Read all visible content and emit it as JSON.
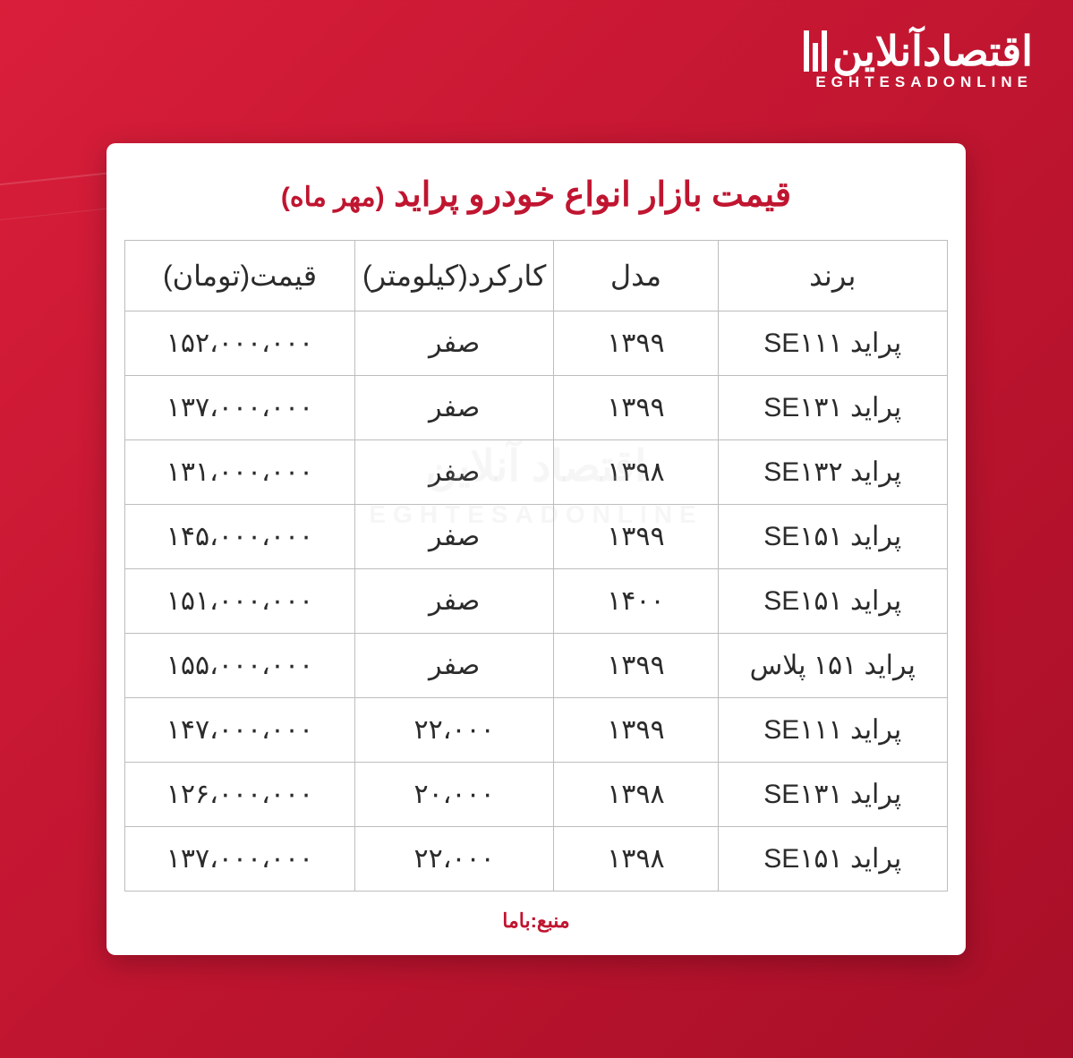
{
  "logo": {
    "main": "اقتصادآنلاین",
    "sub": "EGHTESADONLINE"
  },
  "title": {
    "main": "قیمت بازار انواع خودرو پراید",
    "month": "(مهر ماه)"
  },
  "table": {
    "headers": {
      "brand": "برند",
      "model": "مدل",
      "mileage": "کارکرد(کیلومتر)",
      "price": "قیمت(تومان)"
    },
    "rows": [
      {
        "brand": "پراید SE۱۱۱",
        "model": "۱۳۹۹",
        "mileage": "صفر",
        "price": "۱۵۲،۰۰۰،۰۰۰"
      },
      {
        "brand": "پراید SE۱۳۱",
        "model": "۱۳۹۹",
        "mileage": "صفر",
        "price": "۱۳۷،۰۰۰،۰۰۰"
      },
      {
        "brand": "پراید SE۱۳۲",
        "model": "۱۳۹۸",
        "mileage": "صفر",
        "price": "۱۳۱،۰۰۰،۰۰۰"
      },
      {
        "brand": "پراید SE۱۵۱",
        "model": "۱۳۹۹",
        "mileage": "صفر",
        "price": "۱۴۵،۰۰۰،۰۰۰"
      },
      {
        "brand": "پراید SE۱۵۱",
        "model": "۱۴۰۰",
        "mileage": "صفر",
        "price": "۱۵۱،۰۰۰،۰۰۰"
      },
      {
        "brand": "پراید ۱۵۱ پلاس",
        "model": "۱۳۹۹",
        "mileage": "صفر",
        "price": "۱۵۵،۰۰۰،۰۰۰"
      },
      {
        "brand": "پراید SE۱۱۱",
        "model": "۱۳۹۹",
        "mileage": "۲۲،۰۰۰",
        "price": "۱۴۷،۰۰۰،۰۰۰"
      },
      {
        "brand": "پراید SE۱۳۱",
        "model": "۱۳۹۸",
        "mileage": "۲۰،۰۰۰",
        "price": "۱۲۶،۰۰۰،۰۰۰"
      },
      {
        "brand": "پراید SE۱۵۱",
        "model": "۱۳۹۸",
        "mileage": "۲۲،۰۰۰",
        "price": "۱۳۷،۰۰۰،۰۰۰"
      }
    ]
  },
  "source": "منبع:باما",
  "watermark": {
    "main": "اقتصاد آنلاین",
    "sub": "EGHTESADONLINE"
  },
  "colors": {
    "primary_red": "#c01530",
    "bg_red_light": "#d91e3a",
    "bg_red_dark": "#a80f28",
    "card_bg": "#ffffff",
    "border": "#bdbdbd",
    "text": "#2b2b2b"
  }
}
